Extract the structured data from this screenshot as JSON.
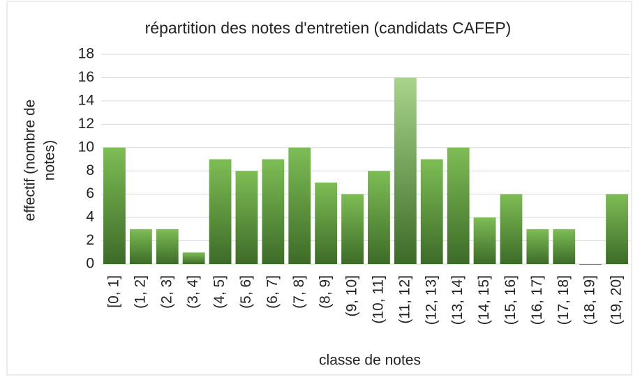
{
  "chart_data": {
    "type": "bar",
    "title": "répartition des notes d'entretien (candidats CAFEP)",
    "xlabel": "classe de notes",
    "ylabel_lines": [
      "effectif (nombre de",
      "notes)"
    ],
    "categories": [
      "[0, 1]",
      "(1, 2]",
      "(2, 3]",
      "(3, 4]",
      "(4, 5]",
      "(5, 6]",
      "(6, 7]",
      "(7, 8]",
      "(8, 9]",
      "(9, 10]",
      "(10, 11]",
      "(11, 12]",
      "(12, 13]",
      "(13, 14]",
      "(14, 15]",
      "(15, 16]",
      "(16, 17]",
      "(17, 18]",
      "(18, 19]",
      "(19, 20]"
    ],
    "values": [
      10,
      3,
      3,
      1,
      9,
      8,
      9,
      10,
      7,
      6,
      8,
      16,
      9,
      10,
      4,
      6,
      3,
      3,
      0,
      6
    ],
    "colors": [
      "#7dbd55",
      "#7dbd55",
      "#7dbd55",
      "#7dbd55",
      "#7dbd55",
      "#7dbd55",
      "#7dbd55",
      "#7dbd55",
      "#7dbd55",
      "#7dbd55",
      "#7dbd55",
      "#a8d48a",
      "#7dbd55",
      "#7dbd55",
      "#7dbd55",
      "#7dbd55",
      "#7dbd55",
      "#7dbd55",
      "#7dbd55",
      "#7dbd55"
    ],
    "ylim": [
      0,
      18
    ],
    "yticks": [
      0,
      2,
      4,
      6,
      8,
      10,
      12,
      14,
      16,
      18
    ],
    "grid": true
  }
}
